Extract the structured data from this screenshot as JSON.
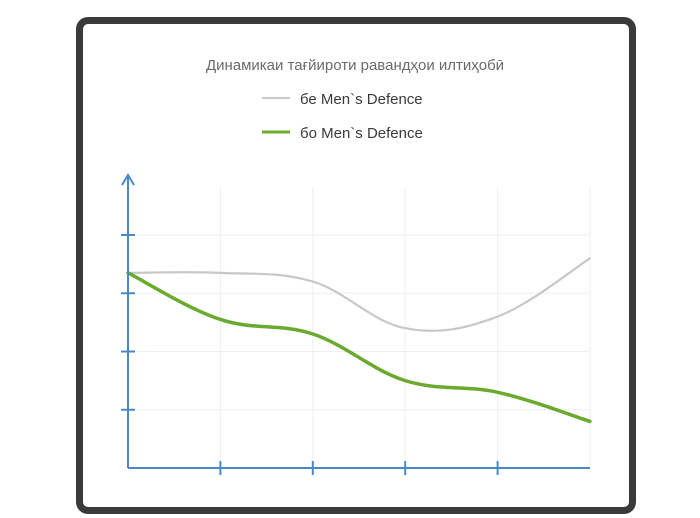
{
  "chart_data": {
    "type": "line",
    "title": "Динамикаи тағйироти равандҳои илтиҳобӣ",
    "legend_position": "top",
    "grid": true,
    "x": [
      0,
      1,
      2,
      3,
      4,
      5
    ],
    "ylim": [
      0,
      4
    ],
    "series": [
      {
        "name": "бе Men`s Defence",
        "color": "#c8c8c8",
        "values": [
          3.35,
          3.35,
          3.2,
          2.4,
          2.6,
          3.6
        ]
      },
      {
        "name": "бо Men`s Defence",
        "color": "#6aaa2e",
        "values": [
          3.35,
          2.55,
          2.3,
          1.5,
          1.3,
          0.8
        ]
      }
    ],
    "axis_color": "#4a88c7"
  }
}
